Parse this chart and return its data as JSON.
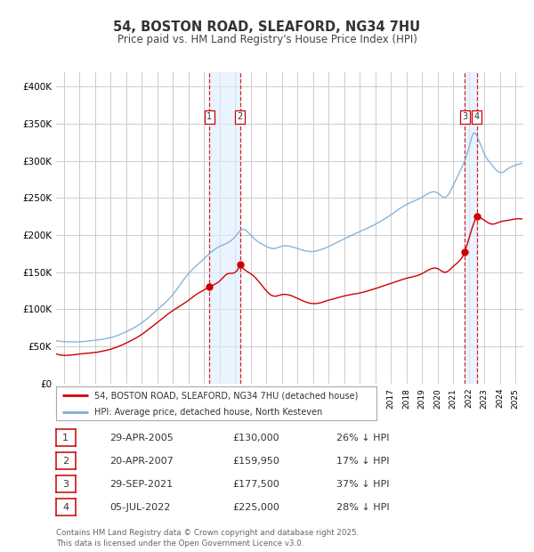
{
  "title": "54, BOSTON ROAD, SLEAFORD, NG34 7HU",
  "subtitle": "Price paid vs. HM Land Registry's House Price Index (HPI)",
  "ylim": [
    0,
    420000
  ],
  "yticks": [
    0,
    50000,
    100000,
    150000,
    200000,
    250000,
    300000,
    350000,
    400000
  ],
  "ytick_labels": [
    "£0",
    "£50K",
    "£100K",
    "£150K",
    "£200K",
    "£250K",
    "£300K",
    "£350K",
    "£400K"
  ],
  "legend_property_label": "54, BOSTON ROAD, SLEAFORD, NG34 7HU (detached house)",
  "legend_hpi_label": "HPI: Average price, detached house, North Kesteven",
  "property_color": "#cc0000",
  "hpi_color": "#7aaed6",
  "vline_color": "#cc0000",
  "vband_color": "#ddeeff",
  "footer": "Contains HM Land Registry data © Crown copyright and database right 2025.\nThis data is licensed under the Open Government Licence v3.0.",
  "transactions": [
    {
      "id": 1,
      "date": "29-APR-2005",
      "price": 130000,
      "pct": "26% ↓ HPI",
      "year": 2005.33
    },
    {
      "id": 2,
      "date": "20-APR-2007",
      "price": 159950,
      "pct": "17% ↓ HPI",
      "year": 2007.3
    },
    {
      "id": 3,
      "date": "29-SEP-2021",
      "price": 177500,
      "pct": "37% ↓ HPI",
      "year": 2021.75
    },
    {
      "id": 4,
      "date": "05-JUL-2022",
      "price": 225000,
      "pct": "28% ↓ HPI",
      "year": 2022.5
    }
  ],
  "background_color": "#ffffff",
  "grid_color": "#cccccc",
  "xlim_start": 1995.5,
  "xlim_end": 2025.5
}
